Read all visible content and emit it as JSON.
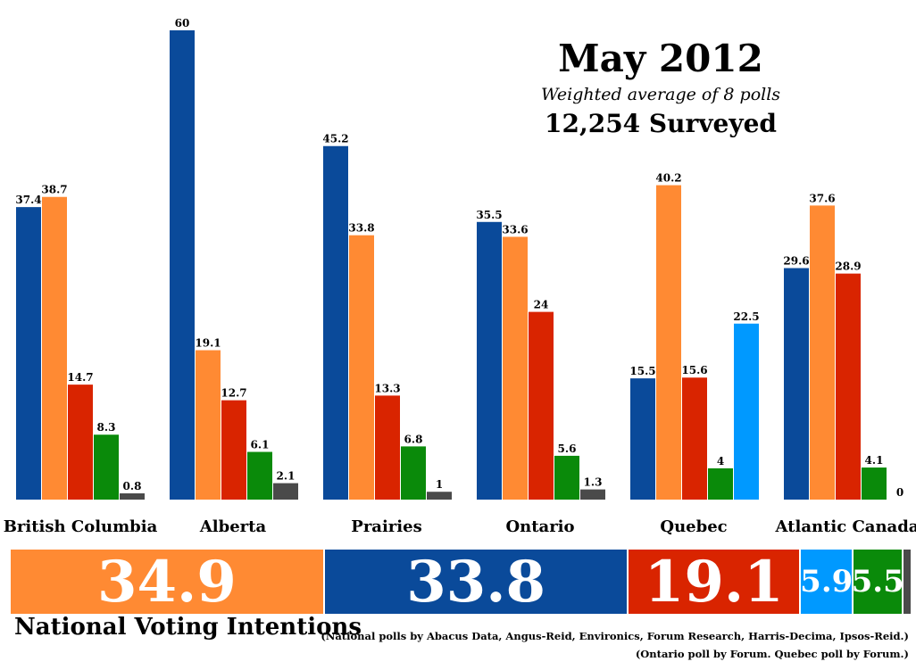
{
  "title": "May 2012",
  "subtitle": "Weighted average of 8 polls",
  "surveyed": "12,254 Surveyed",
  "colors": {
    "blue": "#0a4a9a",
    "orange": "#ff8a33",
    "red": "#d92400",
    "green": "#0a8a0a",
    "lightblue": "#0099ff",
    "grey": "#4a4a4a"
  },
  "chart_data": {
    "type": "bar",
    "categories": [
      "British Columbia",
      "Alberta",
      "Prairies",
      "Ontario",
      "Quebec",
      "Atlantic Canada"
    ],
    "ylim": [
      0,
      60
    ],
    "series": [
      {
        "color": "blue",
        "values": [
          37.4,
          60,
          45.2,
          35.5,
          15.5,
          29.6
        ]
      },
      {
        "color": "orange",
        "values": [
          38.7,
          19.1,
          33.8,
          33.6,
          40.2,
          37.6
        ]
      },
      {
        "color": "red",
        "values": [
          14.7,
          12.7,
          13.3,
          24,
          15.6,
          28.9
        ]
      },
      {
        "color": "green",
        "values": [
          8.3,
          6.1,
          6.8,
          5.6,
          4,
          4.1
        ]
      },
      {
        "color": "lightblue",
        "values": [
          null,
          null,
          null,
          null,
          22.5,
          null
        ]
      },
      {
        "color": "grey",
        "values": [
          0.8,
          2.1,
          1,
          1.3,
          null,
          0
        ]
      }
    ]
  },
  "national": {
    "label": "National Voting Intentions",
    "segments": [
      {
        "value": 34.9,
        "text": "34.9",
        "color": "orange"
      },
      {
        "value": 33.8,
        "text": "33.8",
        "color": "blue"
      },
      {
        "value": 19.1,
        "text": "19.1",
        "color": "red"
      },
      {
        "value": 5.9,
        "text": "5.9",
        "color": "lightblue"
      },
      {
        "value": 5.5,
        "text": "5.5",
        "color": "green"
      },
      {
        "value": 0.8,
        "text": "",
        "color": "grey"
      }
    ]
  },
  "notes": [
    "(National polls by Abacus Data, Angus-Reid, Environics, Forum Research, Harris-Decima, Ipsos-Reid.)",
    "(Ontario poll by Forum. Quebec poll by Forum.)"
  ]
}
